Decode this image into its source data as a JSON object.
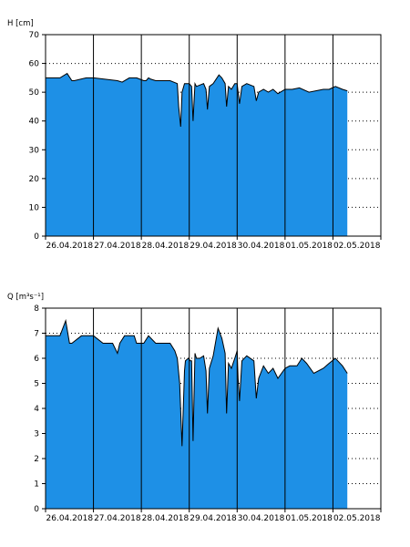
{
  "chart_data": [
    {
      "type": "area",
      "title": "",
      "ylabel": "H [cm]",
      "xlabel": "",
      "ylim": [
        0,
        70
      ],
      "yticks": [
        0,
        10,
        20,
        30,
        40,
        50,
        60,
        70
      ],
      "xlim": [
        0,
        7
      ],
      "xtick_labels": [
        "26.04.2018",
        "27.04.2018",
        "28.04.2018",
        "29.04.2018",
        "30.04.2018",
        "01.05.2018",
        "02.05.2018"
      ],
      "grid": "dotted horizontal, solid vertical at day boundaries",
      "fill_color": "#1E90E6",
      "series": [
        {
          "x": [
            0,
            0.3,
            0.45,
            0.55,
            0.6,
            0.85,
            1.0,
            1.5,
            1.6,
            1.75,
            1.9,
            2.05,
            2.1,
            2.15,
            2.2,
            2.3,
            2.6,
            2.75,
            2.78,
            2.82,
            2.85,
            2.9,
            3.0,
            3.05,
            3.08,
            3.12,
            3.15,
            3.3,
            3.35,
            3.38,
            3.42,
            3.5,
            3.62,
            3.68,
            3.75,
            3.78,
            3.82,
            3.88,
            3.95,
            4.0,
            4.02,
            4.05,
            4.1,
            4.2,
            4.35,
            4.4,
            4.45,
            4.55,
            4.65,
            4.75,
            4.85,
            5.0,
            5.05,
            5.15,
            5.3,
            5.5,
            5.8,
            5.92,
            6.05,
            6.2,
            6.3
          ],
          "y": [
            55,
            55,
            56.5,
            54,
            54,
            55,
            55,
            54,
            53.5,
            55,
            55,
            54,
            54,
            55,
            54.5,
            54,
            54,
            53,
            45,
            38,
            50,
            53,
            53,
            52,
            40,
            53,
            52,
            53,
            51,
            44,
            52,
            53,
            56,
            55,
            53,
            45,
            52,
            51,
            53,
            53,
            50,
            46,
            52,
            53,
            52,
            47,
            50,
            51,
            50,
            51,
            49.5,
            51,
            51,
            51,
            51.5,
            50,
            51,
            51,
            52,
            51,
            50.5
          ]
        }
      ]
    },
    {
      "type": "area",
      "title": "",
      "ylabel": "Q [m³s⁻¹]",
      "xlabel": "",
      "ylim": [
        0,
        8
      ],
      "yticks": [
        0,
        1,
        2,
        3,
        4,
        5,
        6,
        7,
        8
      ],
      "xlim": [
        0,
        7
      ],
      "xtick_labels": [
        "26.04.2018",
        "27.04.2018",
        "28.04.2018",
        "29.04.2018",
        "30.04.2018",
        "01.05.2018",
        "02.05.2018"
      ],
      "grid": "dotted horizontal, solid vertical at day boundaries",
      "fill_color": "#1E90E6",
      "series": [
        {
          "x": [
            0,
            0.3,
            0.42,
            0.5,
            0.55,
            0.75,
            1.0,
            1.2,
            1.4,
            1.5,
            1.55,
            1.65,
            1.85,
            1.9,
            2.05,
            2.15,
            2.3,
            2.6,
            2.7,
            2.75,
            2.8,
            2.85,
            2.9,
            2.92,
            2.98,
            3.02,
            3.05,
            3.08,
            3.12,
            3.15,
            3.22,
            3.3,
            3.35,
            3.38,
            3.42,
            3.5,
            3.6,
            3.68,
            3.75,
            3.78,
            3.82,
            3.88,
            3.95,
            4.0,
            4.02,
            4.05,
            4.1,
            4.2,
            4.35,
            4.4,
            4.45,
            4.55,
            4.65,
            4.75,
            4.85,
            5.0,
            5.1,
            5.25,
            5.35,
            5.45,
            5.6,
            5.8,
            5.92,
            6.05,
            6.2,
            6.3
          ],
          "y": [
            6.9,
            6.9,
            7.5,
            6.6,
            6.6,
            6.9,
            6.9,
            6.6,
            6.6,
            6.2,
            6.6,
            6.9,
            6.9,
            6.6,
            6.6,
            6.9,
            6.6,
            6.6,
            6.3,
            6.0,
            5.0,
            2.5,
            5.5,
            5.9,
            6.0,
            5.9,
            5.9,
            2.7,
            6.2,
            6.0,
            6.0,
            6.1,
            5.5,
            3.8,
            5.6,
            6.1,
            7.2,
            6.8,
            6.2,
            3.8,
            5.8,
            5.6,
            6.0,
            6.3,
            5.2,
            4.3,
            5.9,
            6.1,
            5.9,
            4.4,
            5.2,
            5.7,
            5.4,
            5.6,
            5.2,
            5.6,
            5.7,
            5.7,
            6.0,
            5.8,
            5.4,
            5.6,
            5.8,
            6.0,
            5.7,
            5.4
          ]
        }
      ]
    }
  ]
}
